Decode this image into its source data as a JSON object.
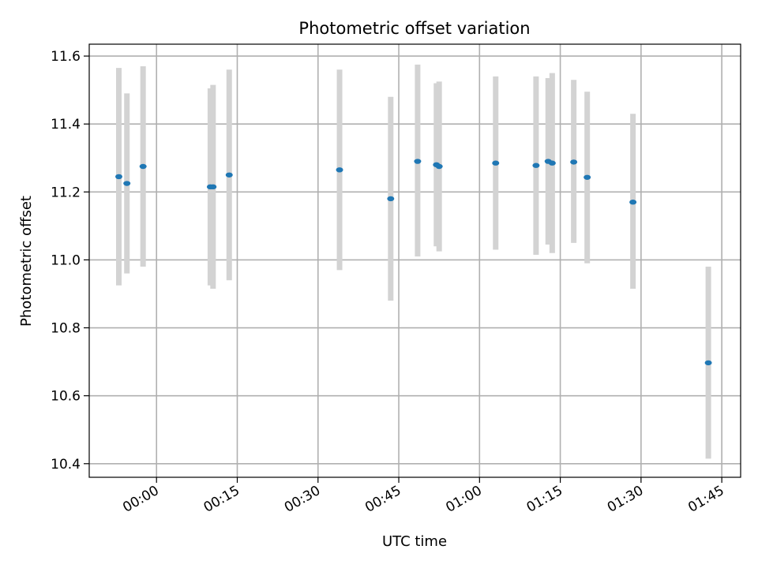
{
  "chart_data": {
    "type": "scatter",
    "title": "Photometric offset variation",
    "xlabel": "UTC time",
    "ylabel": "Photometric offset",
    "x_unit": "HH:MM UTC",
    "xlim": [
      "-00:12.5",
      "01:48.5"
    ],
    "ylim": [
      10.36,
      11.635
    ],
    "grid": true,
    "legend": "none",
    "xticks": [
      "00:00",
      "00:15",
      "00:30",
      "00:45",
      "01:00",
      "01:15",
      "01:30",
      "01:45"
    ],
    "yticks": [
      "10.4",
      "10.6",
      "10.8",
      "11.0",
      "11.2",
      "11.4",
      "11.6"
    ],
    "series": [
      {
        "marker_color": "#1f77b4",
        "errorbar_color": "#d3d3d3",
        "points": [
          {
            "x": "-00:07",
            "y": 11.245,
            "lo": 10.925,
            "hi": 11.565
          },
          {
            "x": "-00:05.5",
            "y": 11.225,
            "lo": 10.96,
            "hi": 11.49
          },
          {
            "x": "-00:02.5",
            "y": 11.275,
            "lo": 10.98,
            "hi": 11.57
          },
          {
            "x": "00:10",
            "y": 11.215,
            "lo": 10.925,
            "hi": 11.505
          },
          {
            "x": "00:10.5",
            "y": 11.215,
            "lo": 10.915,
            "hi": 11.515
          },
          {
            "x": "00:13.5",
            "y": 11.25,
            "lo": 10.94,
            "hi": 11.56
          },
          {
            "x": "00:34",
            "y": 11.265,
            "lo": 10.97,
            "hi": 11.56
          },
          {
            "x": "00:43.5",
            "y": 11.18,
            "lo": 10.88,
            "hi": 11.48
          },
          {
            "x": "00:48.5",
            "y": 11.29,
            "lo": 11.01,
            "hi": 11.575
          },
          {
            "x": "00:52",
            "y": 11.28,
            "lo": 11.04,
            "hi": 11.52
          },
          {
            "x": "00:52.5",
            "y": 11.275,
            "lo": 11.025,
            "hi": 11.525
          },
          {
            "x": "01:03",
            "y": 11.285,
            "lo": 11.03,
            "hi": 11.54
          },
          {
            "x": "01:10.5",
            "y": 11.278,
            "lo": 11.015,
            "hi": 11.54
          },
          {
            "x": "01:12.75",
            "y": 11.29,
            "lo": 11.045,
            "hi": 11.535
          },
          {
            "x": "01:13.5",
            "y": 11.285,
            "lo": 11.02,
            "hi": 11.55
          },
          {
            "x": "01:17.5",
            "y": 11.288,
            "lo": 11.05,
            "hi": 11.53
          },
          {
            "x": "01:20",
            "y": 11.243,
            "lo": 10.99,
            "hi": 11.495
          },
          {
            "x": "01:28.5",
            "y": 11.17,
            "lo": 10.915,
            "hi": 11.43
          },
          {
            "x": "01:42.5",
            "y": 10.697,
            "lo": 10.415,
            "hi": 10.98
          }
        ]
      }
    ]
  }
}
